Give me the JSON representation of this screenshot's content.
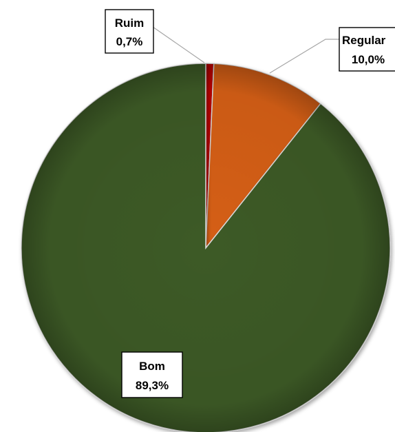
{
  "chart_data": {
    "type": "pie",
    "title": "",
    "slices": [
      {
        "label": "Ruim",
        "value": 0.7,
        "value_text": "0,7%",
        "color": "#c00000"
      },
      {
        "label": "Regular",
        "value": 10.0,
        "value_text": "10,0%",
        "color": "#d55e12"
      },
      {
        "label": "Bom",
        "value": 89.3,
        "value_text": "89,3%",
        "color": "#3d5a27"
      }
    ],
    "start_angle": "12 o'clock",
    "direction": "clockwise",
    "legend": "none",
    "data_labels": "boxed category name and percentage"
  }
}
